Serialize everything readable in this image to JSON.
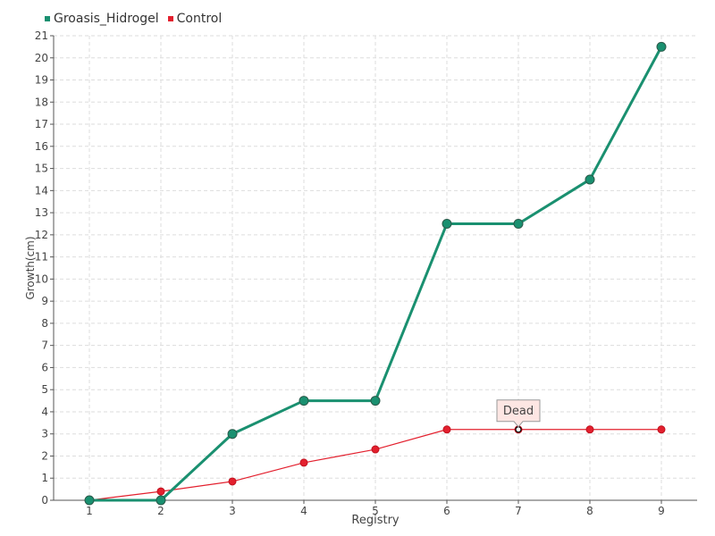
{
  "chart_data": {
    "type": "line",
    "x": [
      1,
      2,
      3,
      4,
      5,
      6,
      7,
      8,
      9
    ],
    "categories": [
      "1",
      "2",
      "3",
      "4",
      "5",
      "6",
      "7",
      "8",
      "9"
    ],
    "xlabel": "Registry",
    "ylabel": "Growth(cm)",
    "ylim": [
      0,
      21
    ],
    "yticks": [
      "0",
      "1",
      "2",
      "3",
      "4",
      "5",
      "6",
      "7",
      "8",
      "9",
      "10",
      "11",
      "12",
      "13",
      "14",
      "15",
      "16",
      "17",
      "18",
      "19",
      "20",
      "21"
    ],
    "grid": true,
    "legend_position": "top-left",
    "series": [
      {
        "name": "Groasis_Hidrogel",
        "color": "#1a9070",
        "values": [
          0,
          0,
          3,
          4.5,
          4.5,
          12.5,
          12.5,
          14.5,
          20.5
        ]
      },
      {
        "name": "Control",
        "color": "#e3202e",
        "values": [
          0,
          0.4,
          0.85,
          1.7,
          2.3,
          3.2,
          3.2,
          3.2,
          3.2
        ]
      }
    ],
    "annotations": [
      {
        "text": "Dead",
        "series": "Control",
        "x": 7
      }
    ]
  }
}
